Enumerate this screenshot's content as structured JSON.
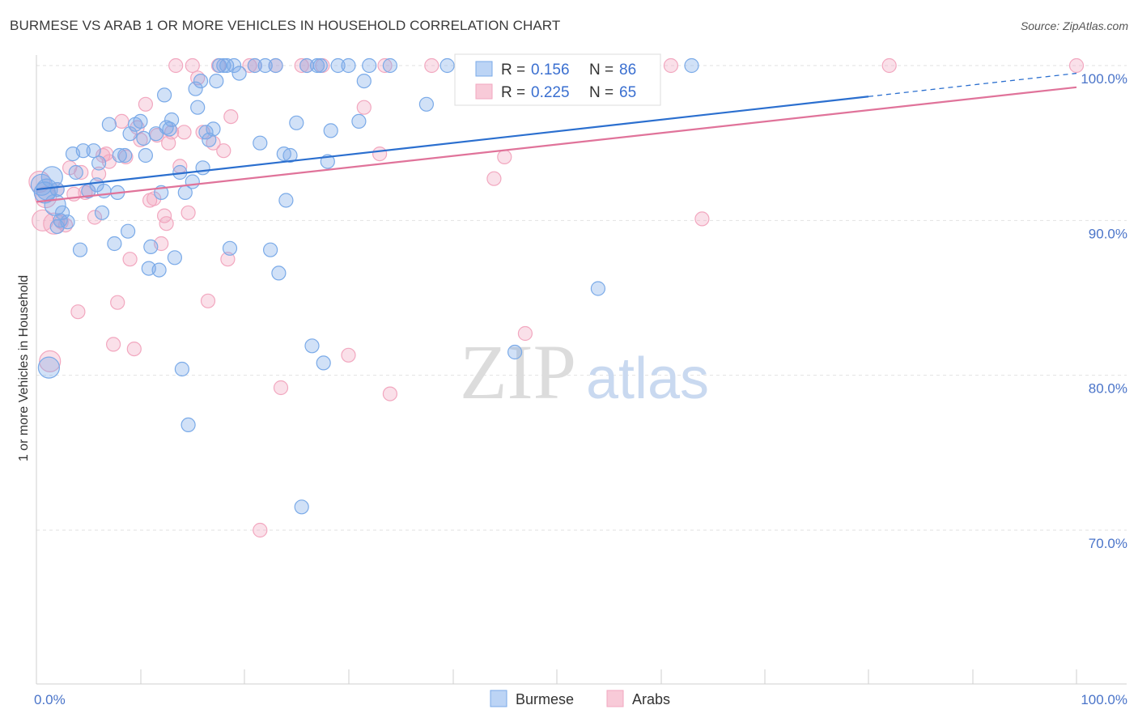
{
  "title": "BURMESE VS ARAB 1 OR MORE VEHICLES IN HOUSEHOLD CORRELATION CHART",
  "source": "Source: ZipAtlas.com",
  "watermark": {
    "zip": "ZIP",
    "atlas": "atlas"
  },
  "chart_data": {
    "type": "scatter",
    "ylabel": "1 or more Vehicles in Household",
    "x_tick_labels": [
      "0.0%",
      "100.0%"
    ],
    "y_tick_labels": [
      "100.0%",
      "90.0%",
      "80.0%",
      "70.0%"
    ],
    "y_ticks": [
      100,
      90,
      80,
      70
    ],
    "xlim": [
      0,
      100
    ],
    "ylim": [
      61,
      103
    ],
    "grid": true,
    "legend_position": "top-center",
    "series": [
      {
        "name": "Burmese",
        "color": "#7aaae8",
        "line_color": "#2b6fcf",
        "R": "0.156",
        "N": "86",
        "trend": {
          "x0": 0,
          "y0": 92.0,
          "x1": 100,
          "y1": 99.5,
          "solid_until": 80
        },
        "points": [
          [
            0.5,
            92.3
          ],
          [
            0.8,
            91.8
          ],
          [
            1.0,
            92.0
          ],
          [
            1.2,
            80.5
          ],
          [
            1.5,
            92.8
          ],
          [
            1.8,
            91.0
          ],
          [
            2.0,
            89.6
          ],
          [
            2.3,
            90.0
          ],
          [
            2.5,
            90.5
          ],
          [
            3.0,
            89.9
          ],
          [
            3.5,
            94.3
          ],
          [
            3.8,
            93.1
          ],
          [
            4.2,
            88.1
          ],
          [
            4.5,
            94.5
          ],
          [
            5.0,
            91.9
          ],
          [
            5.5,
            94.5
          ],
          [
            5.8,
            92.3
          ],
          [
            6.0,
            93.7
          ],
          [
            6.3,
            90.5
          ],
          [
            6.5,
            91.9
          ],
          [
            7.0,
            96.2
          ],
          [
            7.5,
            88.5
          ],
          [
            7.8,
            91.8
          ],
          [
            8.0,
            94.2
          ],
          [
            8.5,
            94.2
          ],
          [
            8.8,
            89.3
          ],
          [
            9.0,
            95.6
          ],
          [
            9.5,
            96.2
          ],
          [
            10.0,
            96.4
          ],
          [
            10.3,
            95.3
          ],
          [
            10.5,
            94.2
          ],
          [
            10.8,
            86.9
          ],
          [
            11.0,
            88.3
          ],
          [
            11.5,
            95.6
          ],
          [
            11.8,
            86.8
          ],
          [
            12.0,
            91.8
          ],
          [
            12.3,
            98.1
          ],
          [
            12.5,
            96.0
          ],
          [
            12.8,
            95.9
          ],
          [
            13.0,
            96.5
          ],
          [
            13.3,
            87.6
          ],
          [
            13.8,
            93.1
          ],
          [
            14.0,
            80.4
          ],
          [
            14.3,
            91.8
          ],
          [
            14.6,
            76.8
          ],
          [
            15.0,
            92.5
          ],
          [
            15.3,
            98.5
          ],
          [
            15.5,
            97.3
          ],
          [
            15.8,
            99.0
          ],
          [
            16.0,
            93.4
          ],
          [
            16.3,
            95.7
          ],
          [
            16.6,
            95.2
          ],
          [
            17.0,
            95.9
          ],
          [
            17.3,
            99.0
          ],
          [
            17.6,
            100.0
          ],
          [
            18.0,
            100.0
          ],
          [
            18.3,
            100.0
          ],
          [
            18.6,
            88.2
          ],
          [
            19.0,
            100.0
          ],
          [
            19.5,
            99.5
          ],
          [
            21.0,
            100.0
          ],
          [
            21.5,
            95.0
          ],
          [
            22.0,
            100.0
          ],
          [
            22.5,
            88.1
          ],
          [
            23.0,
            100.0
          ],
          [
            23.3,
            86.6
          ],
          [
            23.8,
            94.3
          ],
          [
            24.0,
            91.3
          ],
          [
            24.4,
            94.2
          ],
          [
            25.0,
            96.3
          ],
          [
            25.5,
            71.5
          ],
          [
            26.0,
            100.0
          ],
          [
            26.5,
            81.9
          ],
          [
            27.0,
            100.0
          ],
          [
            27.3,
            100.0
          ],
          [
            27.6,
            80.8
          ],
          [
            28.0,
            93.8
          ],
          [
            28.3,
            95.8
          ],
          [
            29.0,
            100.0
          ],
          [
            30.0,
            100.0
          ],
          [
            31.0,
            96.4
          ],
          [
            31.5,
            99.0
          ],
          [
            32.0,
            100.0
          ],
          [
            34.0,
            100.0
          ],
          [
            37.5,
            97.5
          ],
          [
            39.5,
            100.0
          ],
          [
            46.0,
            81.5
          ],
          [
            54.0,
            85.6
          ],
          [
            63.0,
            100.0
          ],
          [
            2.0,
            92.0
          ]
        ]
      },
      {
        "name": "Arabs",
        "color": "#f2a7bf",
        "line_color": "#e0739a",
        "R": "0.225",
        "N": "65",
        "trend": {
          "x0": 0,
          "y0": 91.2,
          "x1": 100,
          "y1": 98.6,
          "solid_until": 100
        },
        "points": [
          [
            0.3,
            92.5
          ],
          [
            0.6,
            90.0
          ],
          [
            0.9,
            91.5
          ],
          [
            1.3,
            80.9
          ],
          [
            1.7,
            89.8
          ],
          [
            2.0,
            92.0
          ],
          [
            2.4,
            89.9
          ],
          [
            2.8,
            89.7
          ],
          [
            3.2,
            93.4
          ],
          [
            3.6,
            91.7
          ],
          [
            4.0,
            84.1
          ],
          [
            4.3,
            93.1
          ],
          [
            4.7,
            91.8
          ],
          [
            5.0,
            91.9
          ],
          [
            5.6,
            90.2
          ],
          [
            6.0,
            93.0
          ],
          [
            6.4,
            94.2
          ],
          [
            6.7,
            94.3
          ],
          [
            7.0,
            93.8
          ],
          [
            7.4,
            82.0
          ],
          [
            7.8,
            84.7
          ],
          [
            8.2,
            96.4
          ],
          [
            8.6,
            94.1
          ],
          [
            9.0,
            87.5
          ],
          [
            9.4,
            81.7
          ],
          [
            9.7,
            96.0
          ],
          [
            10.0,
            95.2
          ],
          [
            10.5,
            97.5
          ],
          [
            10.9,
            91.3
          ],
          [
            11.3,
            91.4
          ],
          [
            11.6,
            95.5
          ],
          [
            12.0,
            88.5
          ],
          [
            12.3,
            90.3
          ],
          [
            12.7,
            95.0
          ],
          [
            13.0,
            95.7
          ],
          [
            13.4,
            100.0
          ],
          [
            13.8,
            93.5
          ],
          [
            14.2,
            95.7
          ],
          [
            14.6,
            90.5
          ],
          [
            15.0,
            100.0
          ],
          [
            15.5,
            99.2
          ],
          [
            16.0,
            95.7
          ],
          [
            16.5,
            84.8
          ],
          [
            17.0,
            95.0
          ],
          [
            17.5,
            100.0
          ],
          [
            18.0,
            94.5
          ],
          [
            18.4,
            87.5
          ],
          [
            18.7,
            96.7
          ],
          [
            20.5,
            100.0
          ],
          [
            21.0,
            100.0
          ],
          [
            21.5,
            70.0
          ],
          [
            23.0,
            100.0
          ],
          [
            23.5,
            79.2
          ],
          [
            25.5,
            100.0
          ],
          [
            27.5,
            100.0
          ],
          [
            30.0,
            81.3
          ],
          [
            31.5,
            97.3
          ],
          [
            33.0,
            94.3
          ],
          [
            34.0,
            78.8
          ],
          [
            38.0,
            100.0
          ],
          [
            44.0,
            92.7
          ],
          [
            45.0,
            94.1
          ],
          [
            47.0,
            82.7
          ],
          [
            61.0,
            100.0
          ],
          [
            64.0,
            90.1
          ],
          [
            82.0,
            100.0
          ],
          [
            100.0,
            100.0
          ],
          [
            33.5,
            100.0
          ],
          [
            12.5,
            89.8
          ],
          [
            26.0,
            100.0
          ]
        ]
      }
    ]
  }
}
